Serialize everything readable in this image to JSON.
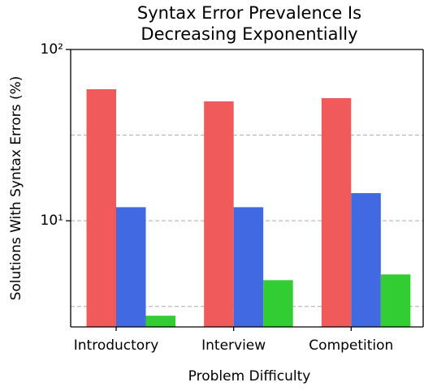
{
  "chart_data": {
    "type": "bar",
    "title": [
      "Syntax Error Prevalence Is",
      "Decreasing Exponentially"
    ],
    "x_label": "Problem Difficulty",
    "y_label": "Solutions With Syntax Errors (%)",
    "categories": [
      "Introductory",
      "Interview",
      "Competition"
    ],
    "series": [
      {
        "color": "#f05a5a",
        "values": [
          58.6,
          49.8,
          52
        ]
      },
      {
        "color": "#4169e1",
        "values": [
          12,
          12,
          14.5
        ]
      },
      {
        "color": "#32cd32",
        "values": [
          2.79,
          4.5,
          4.86
        ]
      }
    ],
    "log_y": true,
    "ylim": [
      2.4,
      100
    ],
    "yticks": [
      {
        "value": 10,
        "label": "10¹"
      },
      {
        "value": 100,
        "label": "10²"
      }
    ],
    "grid_lines": [
      3.162,
      10,
      31.62
    ]
  }
}
